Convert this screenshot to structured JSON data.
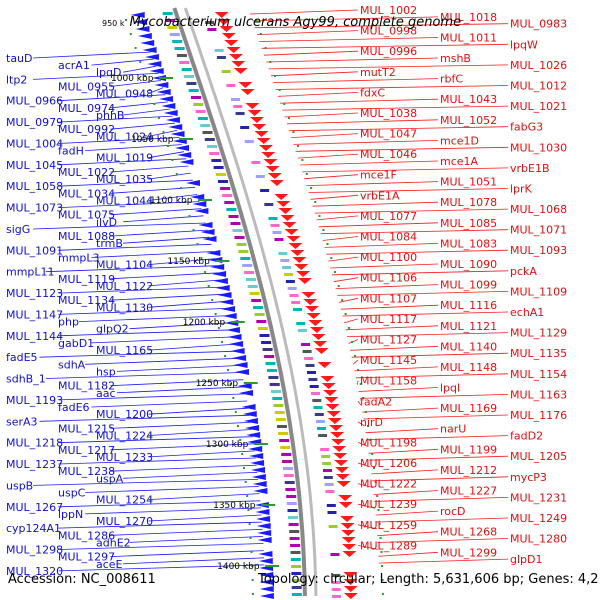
{
  "title": "Mycobacterium ulcerans Agy99, complete genome",
  "start_label": "950 k",
  "footer": {
    "accession": "Accession: NC_008611",
    "info": "Topology: circular; Length: 5,631,606 bp; Genes: 4,210"
  },
  "colors": {
    "forward": "#1a1aff",
    "reverse": "#ff1a1a",
    "backbone": "#888888",
    "tick": "#2a9a2a"
  },
  "kbp_ticks": [
    "1000 kbp",
    "1050 kbp",
    "1100 kbp",
    "1150 kbp",
    "1200 kbp",
    "1250 kbp",
    "1300 kbp",
    "1350 kbp",
    "1400 kbp"
  ],
  "left_labels": [
    "tauD",
    "acrA1",
    "lpqD",
    "ltp2",
    "MUL_0955",
    "MUL_0948",
    "MUL_0966",
    "MUL_0974",
    "phhB",
    "MUL_0979",
    "MUL_0992",
    "MUL_1024",
    "MUL_1004",
    "fadH",
    "MUL_1019",
    "MUL_1045",
    "MUL_1022",
    "MUL_1035",
    "MUL_1058",
    "MUL_1034",
    "MUL_1044",
    "MUL_1073",
    "MUL_1075",
    "ilvD",
    "sigG",
    "MUL_1088",
    "trmB",
    "MUL_1091",
    "mmpL3",
    "MUL_1104",
    "mmpL11",
    "MUL_1119",
    "MUL_1122",
    "MUL_1123",
    "MUL_1134",
    "MUL_1130",
    "MUL_1147",
    "php",
    "glpQ2",
    "MUL_1144",
    "gabD1",
    "MUL_1165",
    "fadE5",
    "sdhA",
    "hsp",
    "sdhB_1",
    "MUL_1182",
    "aac",
    "MUL_1193",
    "fadE6",
    "MUL_1200",
    "serA3",
    "MUL_1215",
    "MUL_1224",
    "MUL_1218",
    "MUL_1217",
    "MUL_1233",
    "MUL_1237",
    "MUL_1238",
    "uspA",
    "uspB",
    "uspC",
    "MUL_1254",
    "MUL_1267",
    "lppN",
    "MUL_1270",
    "cyp124A1",
    "MUL_1286",
    "adhE2",
    "MUL_1298",
    "MUL_1297",
    "aceE",
    "MUL_1320"
  ],
  "right_labels": [
    "MUL_1002",
    "MUL_1018",
    "MUL_0983",
    "MUL_0998",
    "MUL_1011",
    "lpqW",
    "MUL_0996",
    "mshB",
    "MUL_1026",
    "mutT2",
    "rbfC",
    "MUL_1012",
    "fdxC",
    "MUL_1043",
    "MUL_1021",
    "MUL_1038",
    "MUL_1052",
    "fabG3",
    "MUL_1047",
    "mce1D",
    "MUL_1030",
    "MUL_1046",
    "mce1A",
    "vrbE1B",
    "mce1F",
    "MUL_1051",
    "lprK",
    "vrbE1A",
    "MUL_1078",
    "MUL_1068",
    "MUL_1077",
    "MUL_1085",
    "MUL_1071",
    "MUL_1084",
    "MUL_1083",
    "MUL_1093",
    "MUL_1100",
    "MUL_1090",
    "pckA",
    "MUL_1106",
    "MUL_1099",
    "MUL_1109",
    "MUL_1107",
    "MUL_1116",
    "echA1",
    "MUL_1117",
    "MUL_1121",
    "MUL_1129",
    "MUL_1127",
    "MUL_1140",
    "MUL_1135",
    "MUL_1145",
    "MUL_1148",
    "MUL_1154",
    "MUL_1158",
    "lpqI",
    "MUL_1163",
    "fadA2",
    "MUL_1169",
    "MUL_1176",
    "nirD",
    "narU",
    "fadD2",
    "MUL_1198",
    "MUL_1199",
    "MUL_1205",
    "MUL_1206",
    "MUL_1212",
    "mycP3",
    "MUL_1222",
    "MUL_1227",
    "MUL_1231",
    "MUL_1239",
    "rocD",
    "MUL_1249",
    "MUL_1259",
    "MUL_1268",
    "MUL_1280",
    "MUL_1289",
    "MUL_1299",
    "glpD1"
  ]
}
